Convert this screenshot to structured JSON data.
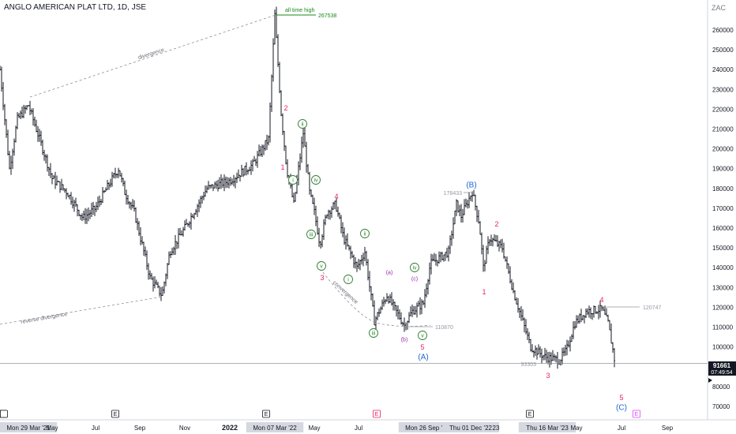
{
  "chart_title": "ANGLO AMERICAN PLAT LTD, 1D, JSE",
  "scale_unit": "ZAC",
  "chart_data": {
    "type": "ohlc",
    "y_ticks": [
      70000,
      80000,
      100000,
      110000,
      120000,
      130000,
      140000,
      150000,
      160000,
      170000,
      180000,
      190000,
      200000,
      210000,
      220000,
      230000,
      240000,
      250000,
      260000
    ],
    "ylim": [
      65000,
      275000
    ],
    "x_ticks": [
      "Ma",
      "Mon 29 Mar '21",
      "May",
      "Jul",
      "Sep",
      "Nov",
      "2022",
      "Mon 07 Mar '22",
      "May",
      "Jul",
      "S",
      "Mon 26 Sep '22",
      "Nov",
      "Thu 01 Dec '22",
      "23",
      "Thu 16 Mar '23",
      "May",
      "Jul",
      "Sep"
    ],
    "highlighted_dates": [
      "Mon 29 Mar '21",
      "Mon 07 Mar '22",
      "Mon 26 Sep '22",
      "Thu 01 Dec '22",
      "Thu 16 Mar '23"
    ],
    "price_path": [
      [
        "Mon 29 Mar '21",
        220000
      ],
      [
        "May '21",
        200000
      ],
      [
        "Sep '21",
        126000
      ],
      [
        "Nov '21",
        160000
      ],
      [
        "Mon 07 Mar '22",
        267538
      ],
      [
        "May '22",
        165000
      ],
      [
        "Jul '22",
        112000
      ],
      [
        "Mon 26 Sep '22",
        110870
      ],
      [
        "Thu 01 Dec '22",
        178433
      ],
      [
        "Jan '23",
        150000
      ],
      [
        "Thu 16 Mar '23",
        93303
      ],
      [
        "May '23",
        121000
      ],
      [
        "Jun '23",
        91661
      ]
    ],
    "annotations": {
      "all_time_high": {
        "label": "all time high",
        "value": "267538"
      },
      "levels": [
        "178433",
        "110870",
        "93303",
        "120747"
      ],
      "trendlines": [
        "divergence",
        "reverse divergence",
        "convergence"
      ],
      "waves": [
        "1",
        "2",
        "3",
        "4",
        "5",
        "i",
        "ii",
        "iii",
        "iv",
        "v",
        "(a)",
        "(b)",
        "(c)",
        "(A)",
        "(B)",
        "(C)"
      ]
    },
    "last_price": {
      "value": "91661",
      "countdown": "07:49:54"
    },
    "event_markers": [
      "E",
      "E",
      "E",
      "E",
      "E",
      "E",
      "E"
    ],
    "colors": {
      "bullet_red": "#e91e63",
      "wave_green": "#2e7d32",
      "wave_purple": "#9c27b0",
      "wave_blue": "#1e66d0",
      "ath_green": "#1b8a1b",
      "bar": "#131722"
    }
  }
}
